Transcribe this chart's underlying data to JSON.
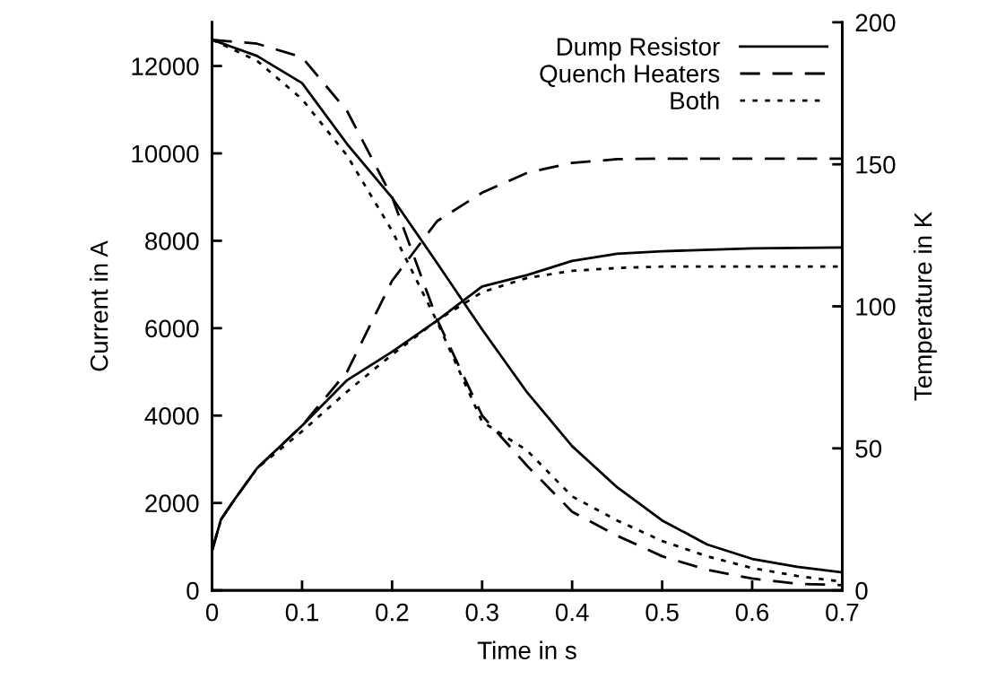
{
  "chart_data": {
    "type": "line",
    "xlabel": "Time in s",
    "ylabel": "Current in A",
    "y2label": "Temperature in K",
    "xlim": [
      0,
      0.7
    ],
    "xticks": [
      0,
      0.1,
      0.2,
      0.3,
      0.4,
      0.5,
      0.6,
      0.7
    ],
    "ylim": [
      0,
      13000
    ],
    "yticks": [
      0,
      2000,
      4000,
      6000,
      8000,
      10000,
      12000
    ],
    "y2lim": [
      0,
      200
    ],
    "y2ticks": [
      0,
      50,
      100,
      150,
      200
    ],
    "legend": "top right",
    "grid": false,
    "x": [
      0,
      0.05,
      0.1,
      0.15,
      0.2,
      0.25,
      0.3,
      0.35,
      0.4,
      0.45,
      0.5,
      0.55,
      0.6,
      0.65,
      0.7
    ],
    "series": [
      {
        "name": "Dump Resistor",
        "color": "#000000",
        "line_style": "solid",
        "values": [
          12600,
          12230,
          11610,
          10215,
          8985,
          7490,
          5970,
          4530,
          3300,
          2360,
          1600,
          1050,
          720,
          540,
          410
        ]
      },
      {
        "name": "Quench Heaters",
        "color": "#000000",
        "line_style": "dashed",
        "values": [
          12600,
          12510,
          12200,
          10970,
          9000,
          6200,
          4000,
          2850,
          1800,
          1250,
          780,
          470,
          270,
          150,
          120
        ]
      },
      {
        "name": "Both",
        "color": "#000000",
        "line_style": "dotted",
        "values": [
          12600,
          12120,
          11240,
          9950,
          8230,
          6150,
          3860,
          3200,
          2150,
          1600,
          1130,
          780,
          510,
          330,
          200
        ]
      },
      {
        "color": "#000000",
        "line_style": "solid",
        "axis": "y2",
        "x": [
          0,
          0.01,
          0.025,
          0.05,
          0.1,
          0.15,
          0.2,
          0.25,
          0.3,
          0.35,
          0.4,
          0.45,
          0.5,
          0.6,
          0.7
        ],
        "values": [
          14,
          25,
          32,
          43,
          58,
          74,
          84,
          95,
          107,
          111,
          116,
          118.5,
          119.4,
          120.4,
          120.7
        ]
      },
      {
        "color": "#000000",
        "line_style": "dashed",
        "axis": "y2",
        "x": [
          0,
          0.01,
          0.025,
          0.05,
          0.1,
          0.15,
          0.2,
          0.25,
          0.3,
          0.35,
          0.4,
          0.45,
          0.5,
          0.6,
          0.7
        ],
        "values": [
          14,
          25,
          32,
          43,
          58,
          77,
          109,
          130,
          140,
          147,
          150.5,
          151.8,
          152,
          152,
          152
        ]
      },
      {
        "color": "#000000",
        "line_style": "dotted",
        "axis": "y2",
        "x": [
          0,
          0.01,
          0.025,
          0.05,
          0.1,
          0.15,
          0.2,
          0.25,
          0.3,
          0.35,
          0.4,
          0.45,
          0.5,
          0.6,
          0.7
        ],
        "values": [
          14,
          25,
          32,
          43,
          56,
          70,
          83,
          95,
          105,
          110,
          112.5,
          113.5,
          114,
          114,
          114
        ]
      }
    ]
  }
}
